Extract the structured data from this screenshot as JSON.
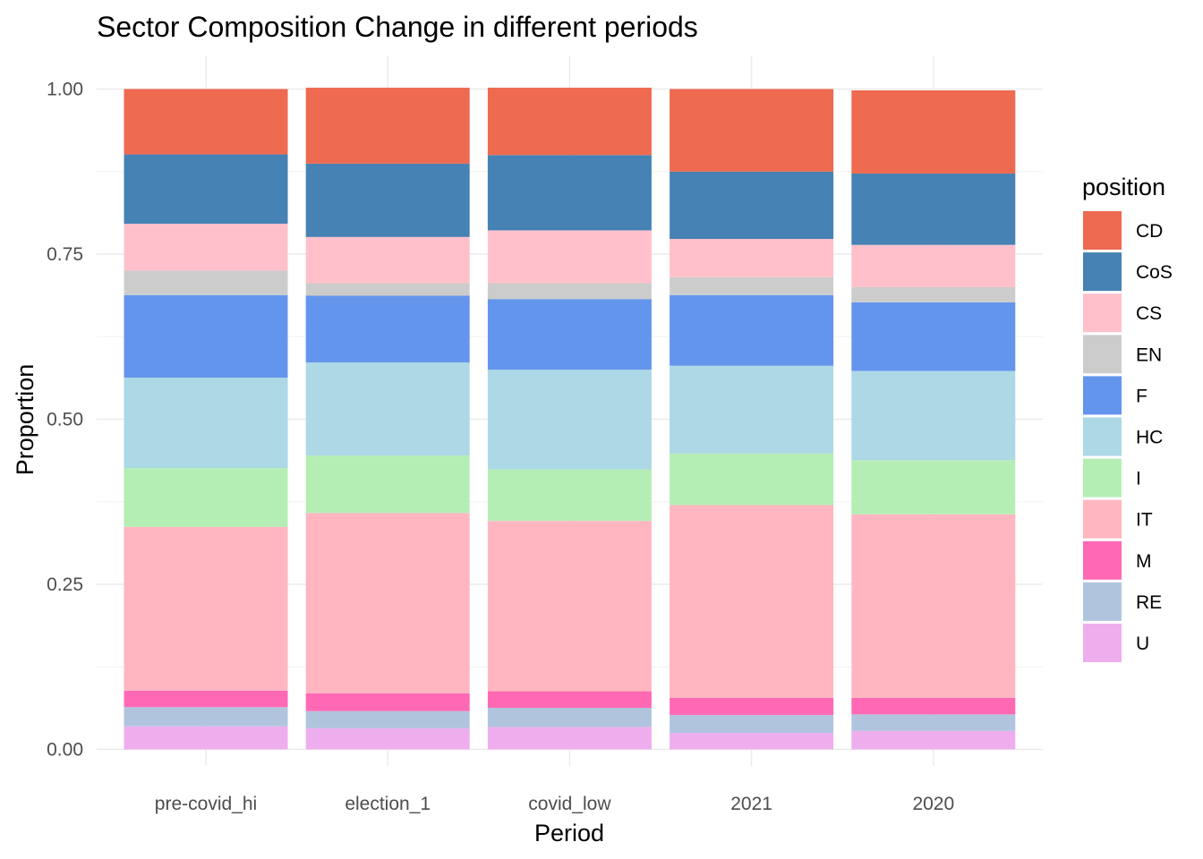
{
  "chart_data": {
    "type": "bar",
    "stacked": true,
    "title": "Sector Composition Change in different periods",
    "xlabel": "Period",
    "ylabel": "Proportion",
    "ylim": [
      0,
      1
    ],
    "yticks": [
      "0.00",
      "0.25",
      "0.50",
      "0.75",
      "1.00"
    ],
    "ytick_values": [
      0,
      0.25,
      0.5,
      0.75,
      1
    ],
    "categories": [
      "pre-covid_hi",
      "election_1",
      "covid_low",
      "2021",
      "2020"
    ],
    "legend_title": "position",
    "legend_position": "right",
    "grid": true,
    "series": [
      {
        "name": "CD",
        "color": "#EE6A50",
        "values": [
          0.099,
          0.115,
          0.102,
          0.125,
          0.126
        ]
      },
      {
        "name": "CoS",
        "color": "#4682B4",
        "values": [
          0.105,
          0.111,
          0.114,
          0.102,
          0.108
        ]
      },
      {
        "name": "CS",
        "color": "#FFC0CB",
        "values": [
          0.071,
          0.07,
          0.08,
          0.058,
          0.064
        ]
      },
      {
        "name": "EN",
        "color": "#CCCCCC",
        "values": [
          0.037,
          0.019,
          0.024,
          0.027,
          0.023
        ]
      },
      {
        "name": "F",
        "color": "#6495ED",
        "values": [
          0.125,
          0.101,
          0.107,
          0.107,
          0.104
        ]
      },
      {
        "name": "HC",
        "color": "#ADD8E6",
        "values": [
          0.137,
          0.141,
          0.151,
          0.133,
          0.135
        ]
      },
      {
        "name": "I",
        "color": "#B4EEB4",
        "values": [
          0.089,
          0.087,
          0.078,
          0.078,
          0.082
        ]
      },
      {
        "name": "IT",
        "color": "#FFB6C1",
        "values": [
          0.248,
          0.273,
          0.258,
          0.292,
          0.278
        ]
      },
      {
        "name": "M",
        "color": "#FF69B4",
        "values": [
          0.025,
          0.027,
          0.025,
          0.026,
          0.025
        ]
      },
      {
        "name": "RE",
        "color": "#B0C4DE",
        "values": [
          0.029,
          0.026,
          0.029,
          0.027,
          0.025
        ]
      },
      {
        "name": "U",
        "color": "#EEAEEE",
        "values": [
          0.035,
          0.032,
          0.034,
          0.025,
          0.028
        ]
      }
    ]
  }
}
